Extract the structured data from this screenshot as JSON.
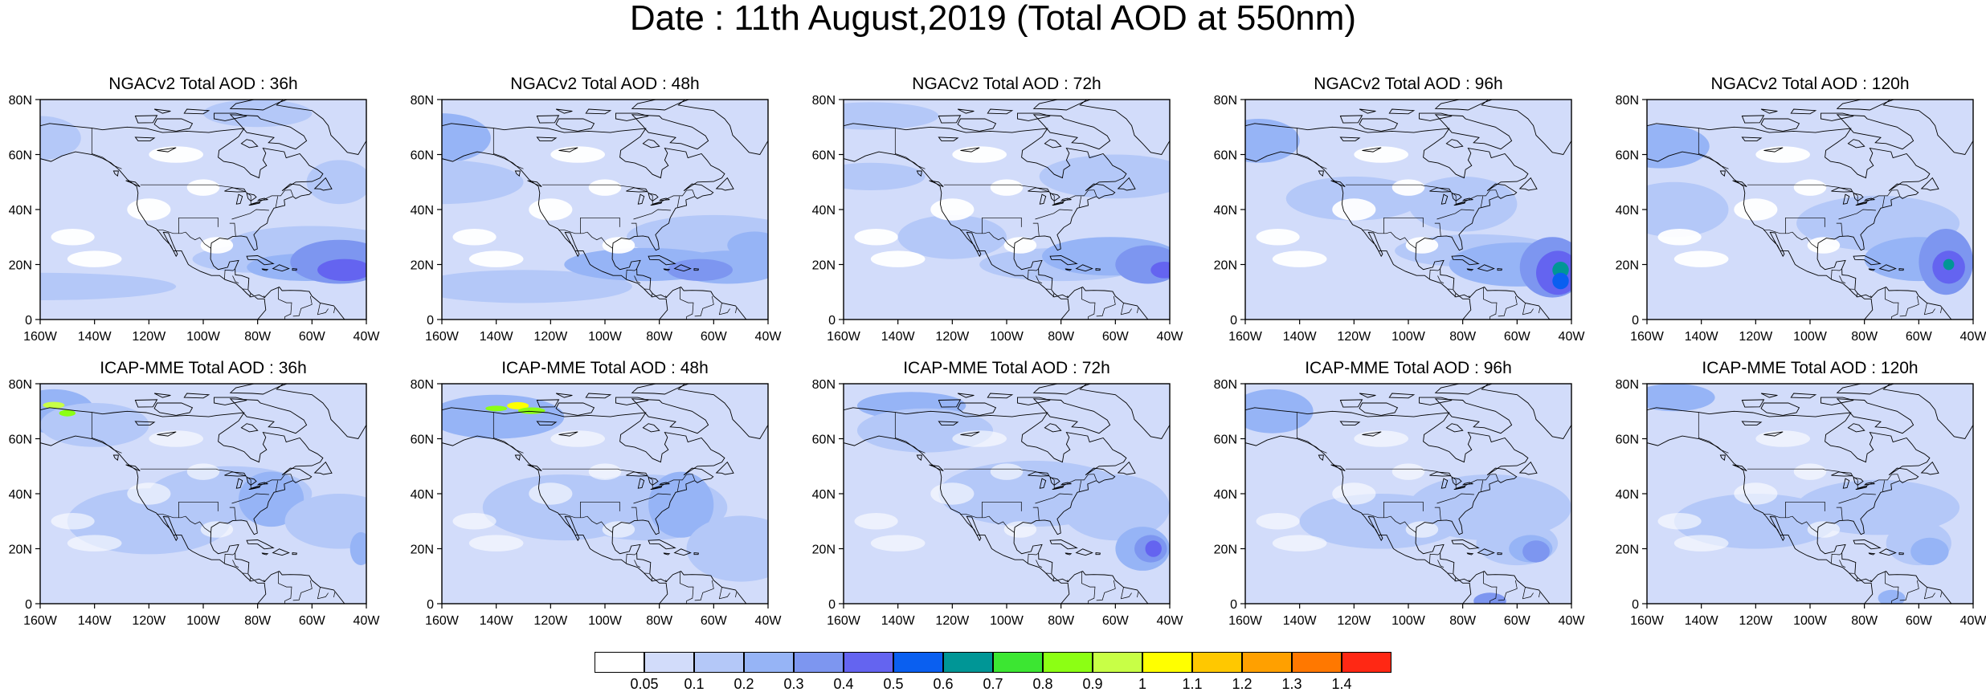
{
  "title": "Date : 11th August,2019 (Total AOD at 550nm)",
  "lat_ticks": [
    "80N",
    "60N",
    "40N",
    "20N",
    "0"
  ],
  "lon_ticks": [
    "160W",
    "140W",
    "120W",
    "100W",
    "80W",
    "60W",
    "40W"
  ],
  "map_extent": {
    "lon": [
      -160,
      -40
    ],
    "lat": [
      0,
      80
    ]
  },
  "panels": [
    {
      "title": "NGACv2 Total AOD : 36h",
      "model": "NGACv2",
      "lead": "36h"
    },
    {
      "title": "NGACv2 Total AOD : 48h",
      "model": "NGACv2",
      "lead": "48h"
    },
    {
      "title": "NGACv2 Total AOD : 72h",
      "model": "NGACv2",
      "lead": "72h"
    },
    {
      "title": "NGACv2 Total AOD : 96h",
      "model": "NGACv2",
      "lead": "96h"
    },
    {
      "title": "NGACv2 Total AOD : 120h",
      "model": "NGACv2",
      "lead": "120h"
    },
    {
      "title": "ICAP-MME Total AOD : 36h",
      "model": "ICAP-MME",
      "lead": "36h"
    },
    {
      "title": "ICAP-MME Total AOD : 48h",
      "model": "ICAP-MME",
      "lead": "48h"
    },
    {
      "title": "ICAP-MME Total AOD : 72h",
      "model": "ICAP-MME",
      "lead": "72h"
    },
    {
      "title": "ICAP-MME Total AOD : 96h",
      "model": "ICAP-MME",
      "lead": "96h"
    },
    {
      "title": "ICAP-MME Total AOD : 120h",
      "model": "ICAP-MME",
      "lead": "120h"
    }
  ],
  "colorbar": {
    "colors": [
      "#ffffff",
      "#d2dcfa",
      "#b4c8f8",
      "#96b4f6",
      "#7d96f0",
      "#6464f0",
      "#0a5ff0",
      "#009696",
      "#3ce632",
      "#8cff14",
      "#c8ff46",
      "#ffff00",
      "#ffc800",
      "#ffa000",
      "#ff7800",
      "#ff2814"
    ],
    "labels": [
      "0.05",
      "0.1",
      "0.2",
      "0.3",
      "0.4",
      "0.5",
      "0.6",
      "0.7",
      "0.8",
      "0.9",
      "1",
      "1.1",
      "1.2",
      "1.3",
      "1.4"
    ]
  }
}
